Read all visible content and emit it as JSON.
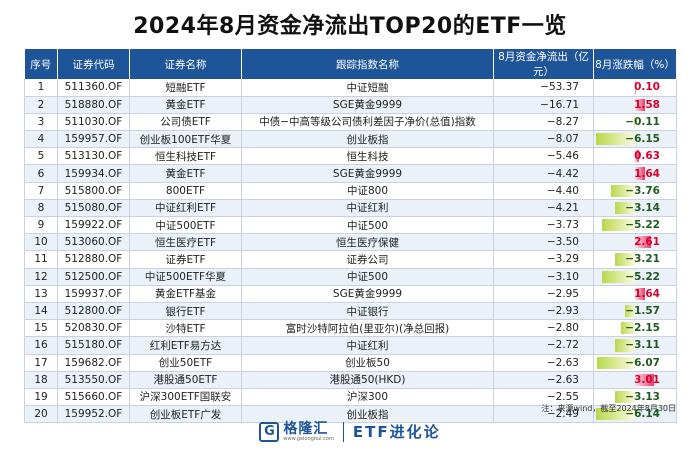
{
  "title": "2024年8月资金净流出TOP20的ETF一览",
  "headers": [
    "序号",
    "证券代码",
    "证券名称",
    "跟踪指数名称",
    "8月资金净流出（亿元）",
    "8月涨跌幅（%）"
  ],
  "rows": [
    {
      "no": "1",
      "code": "511360.OF",
      "name": "短融ETF",
      "index": "中证短融",
      "flow": "−53.37",
      "pct": "0.10",
      "pct_value": 0.1
    },
    {
      "no": "2",
      "code": "518880.OF",
      "name": "黄金ETF",
      "index": "SGE黄金9999",
      "flow": "−16.71",
      "pct": "1.58",
      "pct_value": 1.58
    },
    {
      "no": "3",
      "code": "511030.OF",
      "name": "公司债ETF",
      "index": "中债−中高等级公司债利差因子净价(总值)指数",
      "flow": "−8.27",
      "pct": "−0.11",
      "pct_value": -0.11
    },
    {
      "no": "4",
      "code": "159957.OF",
      "name": "创业板100ETF华夏",
      "index": "创业板指",
      "flow": "−8.07",
      "pct": "−6.15",
      "pct_value": -6.15
    },
    {
      "no": "5",
      "code": "513130.OF",
      "name": "恒生科技ETF",
      "index": "恒生科技",
      "flow": "−5.46",
      "pct": "0.63",
      "pct_value": 0.63
    },
    {
      "no": "6",
      "code": "159934.OF",
      "name": "黄金ETF",
      "index": "SGE黄金9999",
      "flow": "−4.42",
      "pct": "1.64",
      "pct_value": 1.64
    },
    {
      "no": "7",
      "code": "515800.OF",
      "name": "800ETF",
      "index": "中证800",
      "flow": "−4.40",
      "pct": "−3.76",
      "pct_value": -3.76
    },
    {
      "no": "8",
      "code": "515080.OF",
      "name": "中证红利ETF",
      "index": "中证红利",
      "flow": "−4.21",
      "pct": "−3.14",
      "pct_value": -3.14
    },
    {
      "no": "9",
      "code": "159922.OF",
      "name": "中证500ETF",
      "index": "中证500",
      "flow": "−3.73",
      "pct": "−5.22",
      "pct_value": -5.22
    },
    {
      "no": "10",
      "code": "513060.OF",
      "name": "恒生医疗ETF",
      "index": "恒生医疗保健",
      "flow": "−3.50",
      "pct": "2.61",
      "pct_value": 2.61
    },
    {
      "no": "11",
      "code": "512880.OF",
      "name": "证券ETF",
      "index": "证券公司",
      "flow": "−3.29",
      "pct": "−3.21",
      "pct_value": -3.21
    },
    {
      "no": "12",
      "code": "512500.OF",
      "name": "中证500ETF华夏",
      "index": "中证500",
      "flow": "−3.10",
      "pct": "−5.22",
      "pct_value": -5.22
    },
    {
      "no": "13",
      "code": "159937.OF",
      "name": "黄金ETF基金",
      "index": "SGE黄金9999",
      "flow": "−2.95",
      "pct": "1.64",
      "pct_value": 1.64
    },
    {
      "no": "14",
      "code": "512800.OF",
      "name": "银行ETF",
      "index": "中证银行",
      "flow": "−2.93",
      "pct": "−1.57",
      "pct_value": -1.57
    },
    {
      "no": "15",
      "code": "520830.OF",
      "name": "沙特ETF",
      "index": "富时沙特阿拉伯(里亚尔)(净总回报)",
      "flow": "−2.80",
      "pct": "−2.15",
      "pct_value": -2.15
    },
    {
      "no": "16",
      "code": "515180.OF",
      "name": "红利ETF易方达",
      "index": "中证红利",
      "flow": "−2.72",
      "pct": "−3.11",
      "pct_value": -3.11
    },
    {
      "no": "17",
      "code": "159682.OF",
      "name": "创业50ETF",
      "index": "创业板50",
      "flow": "−2.63",
      "pct": "−6.07",
      "pct_value": -6.07
    },
    {
      "no": "18",
      "code": "513550.OF",
      "name": "港股通50ETF",
      "index": "港股通50(HKD)",
      "flow": "−2.63",
      "pct": "3.01",
      "pct_value": 3.01
    },
    {
      "no": "19",
      "code": "515660.OF",
      "name": "沪深300ETF国联安",
      "index": "沪深300",
      "flow": "−2.55",
      "pct": "−3.13",
      "pct_value": -3.13
    },
    {
      "no": "20",
      "code": "159952.OF",
      "name": "创业板ETF广发",
      "index": "创业板指",
      "flow": "−2.49",
      "pct": "−6.14",
      "pct_value": -6.14
    }
  ],
  "note": "注：来源wind，截至2024年8月30日",
  "footer": {
    "logo_char": "G",
    "brand": "格隆汇",
    "brand_url": "www.gelonghui.com",
    "column_name": "ETF进化论"
  },
  "colors": {
    "header_bg": "#1e5598",
    "alt_row_bg": "#eaf1f9",
    "positive": "#d9002b",
    "negative": "#1f5a1f",
    "positive_bar": "#e63b6a",
    "negative_bar": "#b9d84a"
  },
  "icons": {
    "logo": "gelonghui-logo-icon"
  }
}
